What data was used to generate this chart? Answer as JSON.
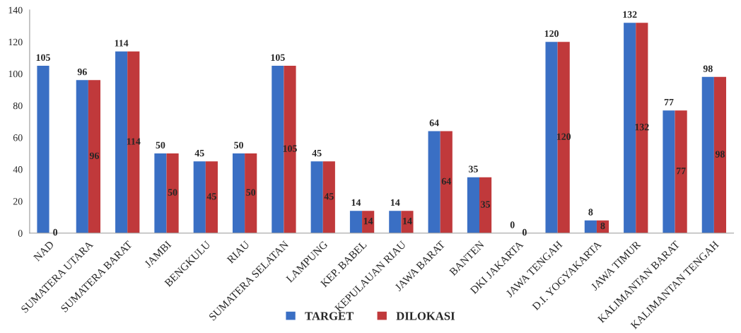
{
  "chart_data": {
    "type": "bar",
    "categories": [
      "NAD",
      "SUMATERA UTARA",
      "SUMATERA BARAT",
      "JAMBI",
      "BENGKULU",
      "RIAU",
      "SUMATERA SELATAN",
      "LAMPUNG",
      "KEP. BABEL",
      "KEPULAUAN RIAU",
      "JAWA BARAT",
      "BANTEN",
      "DKI JAKARTA",
      "JAWA TENGAH",
      "D.I. YOGYAKARTA",
      "JAWA TIMUR",
      "KALIMANTAN BARAT",
      "KALIMANTAN TENGAH"
    ],
    "series": [
      {
        "name": "TARGET",
        "color": "#3a6fc4",
        "values": [
          105,
          96,
          114,
          50,
          45,
          50,
          105,
          45,
          14,
          14,
          64,
          35,
          0,
          120,
          8,
          132,
          77,
          98
        ]
      },
      {
        "name": "DILOKASI",
        "color": "#c0393b",
        "values": [
          0,
          96,
          114,
          50,
          45,
          50,
          105,
          45,
          14,
          14,
          64,
          35,
          0,
          120,
          8,
          132,
          77,
          98
        ]
      }
    ],
    "ylim": [
      0,
      140
    ],
    "yticks": [
      0,
      20,
      40,
      60,
      80,
      100,
      120,
      140
    ],
    "data_labels": true,
    "legend": "bottom",
    "grid": false
  }
}
